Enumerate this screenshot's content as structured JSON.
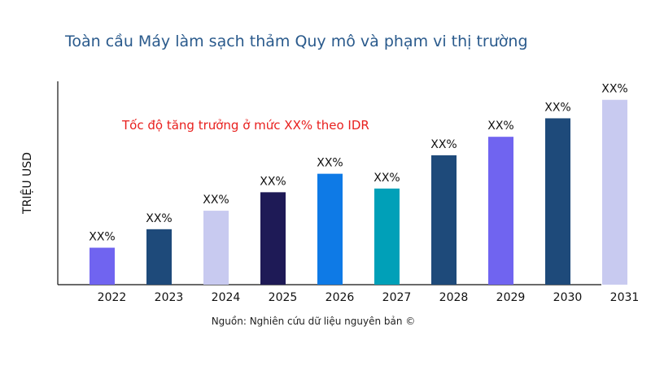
{
  "chart_data": {
    "type": "bar",
    "title": "Toàn cầu Máy làm sạch thảm Quy mô và phạm vi thị trường",
    "ylabel": "TRIỆU USD",
    "xlabel": "",
    "categories": [
      "2022",
      "2023",
      "2024",
      "2025",
      "2026",
      "2027",
      "2028",
      "2029",
      "2030",
      "2031"
    ],
    "values": [
      2.0,
      3.0,
      4.0,
      5.0,
      6.0,
      5.2,
      7.0,
      8.0,
      9.0,
      10.0
    ],
    "data_labels": [
      "XX%",
      "XX%",
      "XX%",
      "XX%",
      "XX%",
      "XX%",
      "XX%",
      "XX%",
      "XX%",
      "XX%"
    ],
    "colors": [
      "#7064f0",
      "#1e4a7a",
      "#c8caf0",
      "#1e1a56",
      "#0e7ae6",
      "#00a0b8",
      "#1e4a7a",
      "#7064f0",
      "#1e4a7a",
      "#c8caf0"
    ],
    "ylim": [
      0,
      11
    ],
    "grid": false,
    "annotation": "Tốc độ tăng trưởng ở mức XX% theo IDR",
    "annotation_color": "#e8201e",
    "source": "Nguồn: Nghiên cứu dữ liệu nguyên bản ©"
  }
}
